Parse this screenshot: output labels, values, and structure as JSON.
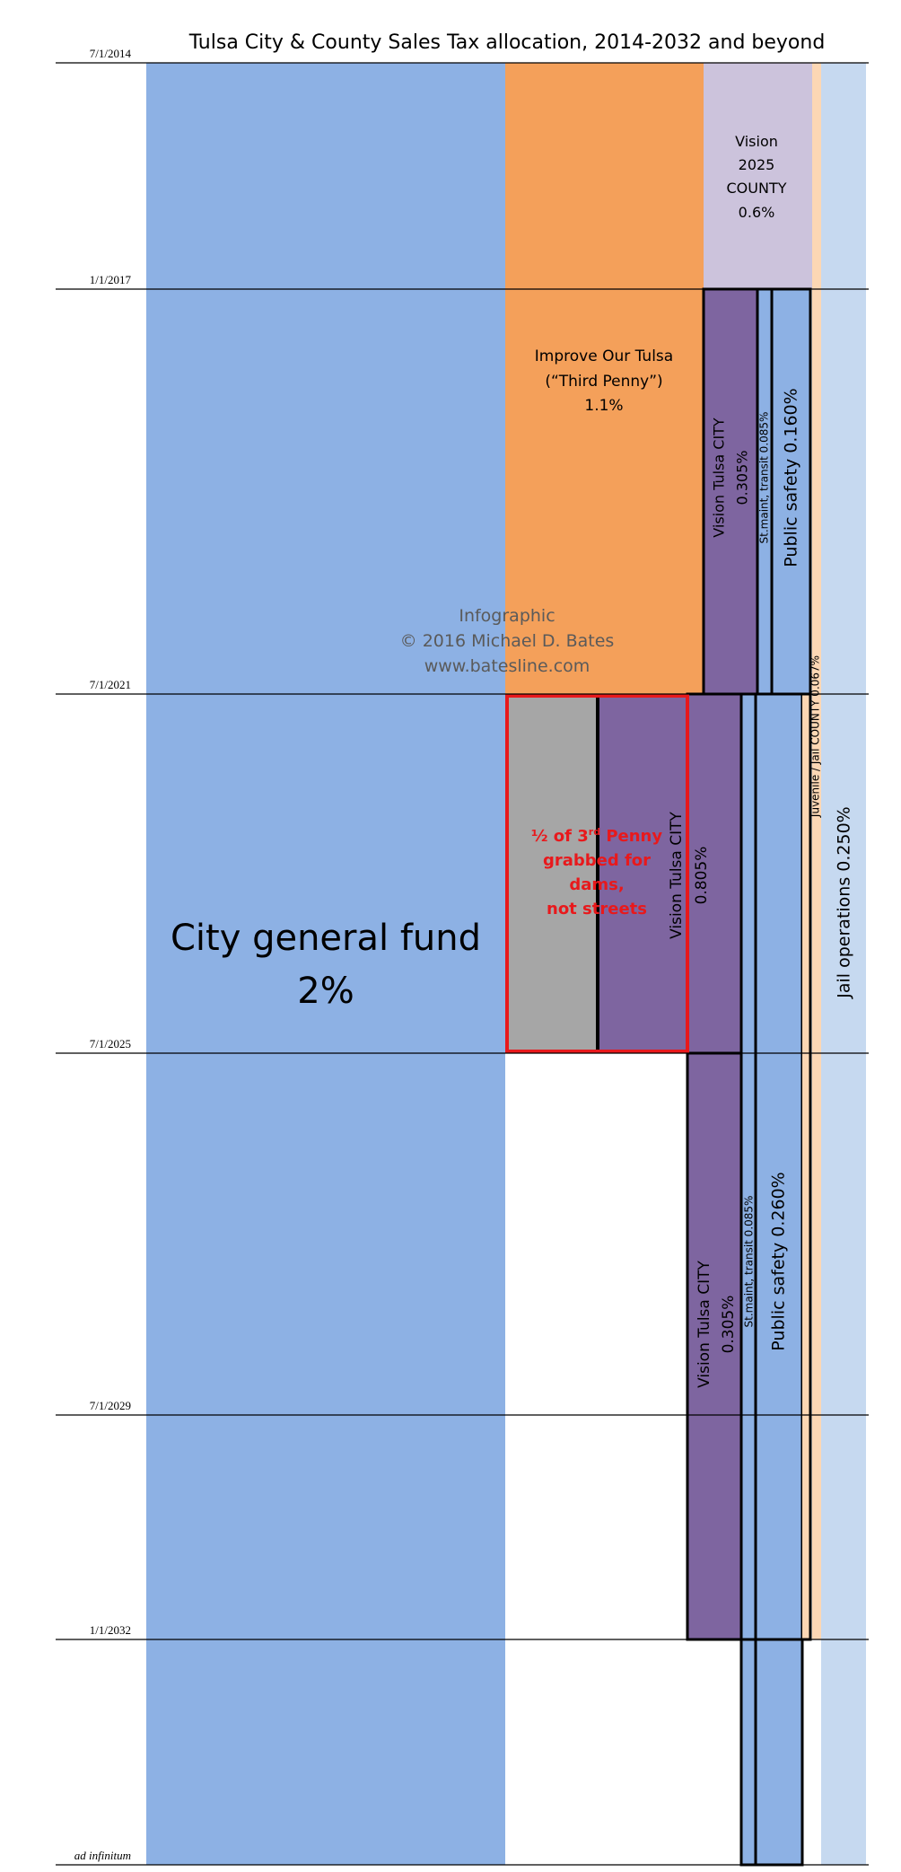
{
  "chart_data": {
    "type": "area",
    "title": "Tulsa City & County Sales Tax allocation, 2014-2032 and beyond",
    "xlabel": "",
    "ylabel": "",
    "axis": {
      "dates": [
        "7/1/2014",
        "1/1/2017",
        "7/1/2021",
        "7/1/2025",
        "7/1/2029",
        "1/1/2032",
        "ad infinitum"
      ]
    },
    "allocations": [
      {
        "name": "City general fund",
        "rate": "2%",
        "start": "7/1/2014",
        "end": "ad infinitum",
        "color": "#8db1e4"
      },
      {
        "name": "Improve Our Tulsa (“Third Penny”)",
        "rate": "1.1%",
        "start": "7/1/2014",
        "end": "7/1/2021",
        "color": "#f4a05a"
      },
      {
        "name": "Vision 2025 COUNTY",
        "rate": "0.6%",
        "start": "7/1/2014",
        "end": "1/1/2017",
        "color": "#ccc3dc"
      },
      {
        "name": "Vision Tulsa CITY",
        "rate": "0.305%",
        "start": "1/1/2017",
        "end": "7/1/2021",
        "color": "#7e65a0"
      },
      {
        "name": "St.maint, transit",
        "rate": "0.085%",
        "start": "1/1/2017",
        "end": "ad infinitum",
        "color": "#8db1e4"
      },
      {
        "name": "Public safety",
        "rate": "0.160%",
        "start": "1/1/2017",
        "end": "7/1/2021",
        "color": "#8db1e4"
      },
      {
        "name": "Juvenile / Jail COUNTY",
        "rate": "0.067%",
        "start": "7/1/2014",
        "end": "1/1/2032",
        "color": "#fcd7b4"
      },
      {
        "name": "Jail operations",
        "rate": "0.250%",
        "start": "7/1/2014",
        "end": "ad infinitum",
        "color": "#c6d9f0"
      },
      {
        "name": "Vision Tulsa CITY",
        "rate": "0.805%",
        "start": "7/1/2021",
        "end": "7/1/2025",
        "color": "#7e65a0"
      },
      {
        "name": "Vision Tulsa CITY",
        "rate": "0.305%",
        "start": "7/1/2025",
        "end": "1/1/2032",
        "color": "#7e65a0"
      },
      {
        "name": "Public safety",
        "rate": "0.260%",
        "start": "7/1/2021",
        "end": "ad infinitum",
        "color": "#8db1e4"
      }
    ],
    "labels": {
      "general_fund_line1": "City general fund",
      "general_fund_line2": "2%",
      "iot_line1": "Improve Our Tulsa",
      "iot_line2": "(“Third Penny”)",
      "iot_line3": "1.1%",
      "v2025_line1": "Vision",
      "v2025_line2": "2025",
      "v2025_line3": "COUNTY",
      "v2025_line4": "0.6%",
      "vt1_line1": "Vision Tulsa CITY",
      "vt1_line2": "0.305%",
      "stmaint1": "St.maint, transit 0.085%",
      "ps1": "Public safety 0.160%",
      "juvenile": "Juvenile / Jail COUNTY 0.067%",
      "jail": "Jail operations 0.250%",
      "vt2_line1": "Vision Tulsa CITY",
      "vt2_line2": "0.805%",
      "grab_line1": "½ of 3",
      "grab_sup": "rd",
      "grab_line1b": " Penny",
      "grab_line2": "grabbed for",
      "grab_line3": "dams,",
      "grab_line4": "not streets",
      "vt3_line1": "Vision Tulsa CITY",
      "vt3_line2": "0.305%",
      "stmaint2": "St.maint, transit 0.085%",
      "ps2": "Public safety 0.260%"
    },
    "credit": {
      "line1": "Infographic",
      "line2": "© 2016 Michael D. Bates",
      "line3": "www.batesline.com"
    },
    "colors": {
      "general_fund": "#8db1e4",
      "third_penny": "#f4a05a",
      "vision_county": "#ccc3dc",
      "vision_city": "#7e65a0",
      "juvenile": "#fcd7b4",
      "jail": "#c6d9f0",
      "grab": "#a6a6a6",
      "highlight": "#e8191c"
    }
  }
}
